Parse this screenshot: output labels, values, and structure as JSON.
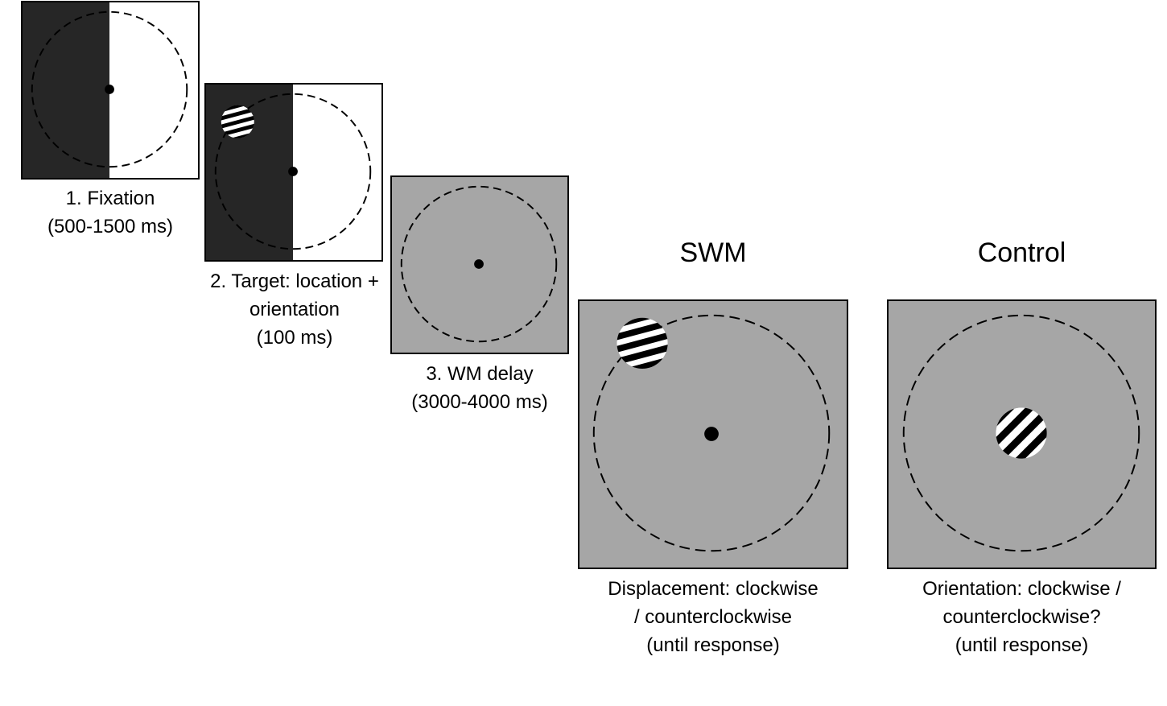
{
  "panels": [
    {
      "caption": [
        "1. Fixation",
        "(500-1500 ms)"
      ]
    },
    {
      "caption": [
        "2. Target: location +",
        "orientation",
        "(100 ms)"
      ]
    },
    {
      "caption": [
        "3. WM delay",
        "(3000-4000 ms)"
      ]
    },
    {
      "heading": "SWM",
      "caption": [
        "Displacement: clockwise",
        "/ counterclockwise",
        "(until response)"
      ]
    },
    {
      "heading": "Control",
      "caption": [
        "Orientation: clockwise /",
        "counterclockwise?",
        "(until response)"
      ]
    }
  ],
  "colors": {
    "dark_half": "#262626",
    "light_half": "#ffffff",
    "gray_background": "#a6a6a6",
    "stroke": "#000000"
  }
}
